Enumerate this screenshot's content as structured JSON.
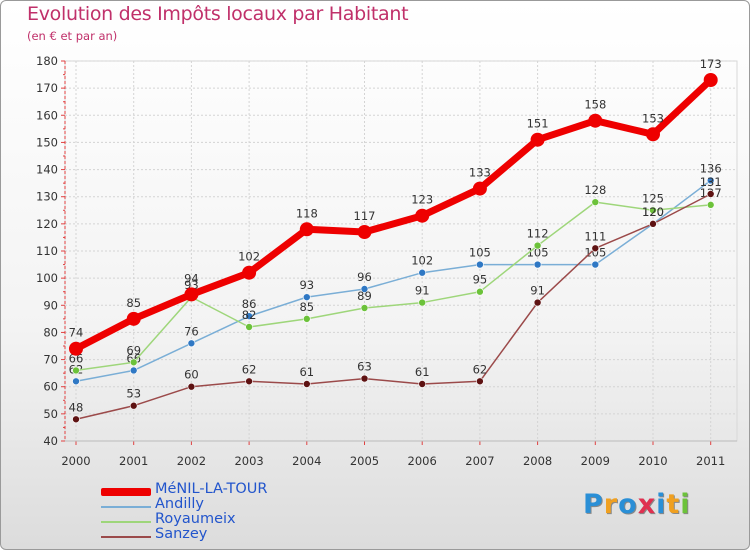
{
  "chart_data": {
    "type": "line",
    "title": "Evolution des Impôts locaux par Habitant",
    "subtitle": "(en € et par an)",
    "categories": [
      "2000",
      "2001",
      "2002",
      "2003",
      "2004",
      "2005",
      "2006",
      "2007",
      "2008",
      "2009",
      "2010",
      "2011"
    ],
    "ylim": [
      40,
      180
    ],
    "yticks": [
      "40",
      "50",
      "60",
      "70",
      "80",
      "90",
      "100",
      "110",
      "120",
      "130",
      "140",
      "150",
      "160",
      "170",
      "180"
    ],
    "grid": true,
    "series": [
      {
        "name": "Andilly",
        "color": "#7aaed6",
        "marker": "#2f78c4",
        "values": [
          62,
          66,
          76,
          86,
          93,
          96,
          102,
          105,
          105,
          105,
          120,
          136
        ],
        "labels": [
          "62",
          "66",
          "76",
          "86",
          "93",
          "96",
          "102",
          "105",
          "105",
          "105",
          "120",
          "136"
        ]
      },
      {
        "name": "Royaumeix",
        "color": "#9ed67a",
        "marker": "#6cc23a",
        "values": [
          66,
          69,
          93,
          82,
          85,
          89,
          91,
          95,
          112,
          128,
          125,
          127
        ],
        "labels": [
          "66",
          "69",
          "93",
          "82",
          "85",
          "89",
          "91",
          "95",
          "112",
          "128",
          "125",
          "127"
        ]
      },
      {
        "name": "Sanzey",
        "color": "#9b4a4a",
        "marker": "#5e1212",
        "values": [
          48,
          53,
          60,
          62,
          61,
          63,
          61,
          62,
          91,
          111,
          120,
          131
        ],
        "labels": [
          "48",
          "53",
          "60",
          "62",
          "61",
          "63",
          "61",
          "62",
          "91",
          "111",
          "120",
          "131"
        ]
      },
      {
        "name": "MéNIL-LA-TOUR",
        "color": "#ee0000",
        "marker": "#ee0000",
        "values": [
          74,
          85,
          94,
          102,
          118,
          117,
          123,
          133,
          151,
          158,
          153,
          173
        ],
        "labels": [
          "74",
          "85",
          "94",
          "102",
          "118",
          "117",
          "123",
          "133",
          "151",
          "158",
          "153",
          "173"
        ]
      }
    ],
    "legend": [
      "MéNIL-LA-TOUR",
      "Andilly",
      "Royaumeix",
      "Sanzey"
    ]
  },
  "logo": {
    "letters": [
      "P",
      "r",
      "o",
      "x",
      "i",
      "t",
      "i"
    ]
  }
}
